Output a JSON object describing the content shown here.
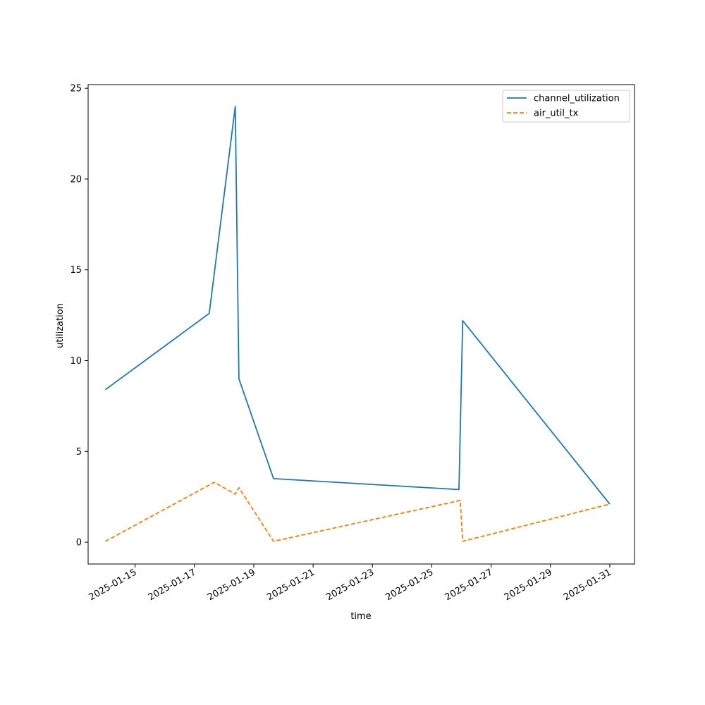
{
  "chart_data": {
    "type": "line",
    "title": "",
    "xlabel": "time",
    "ylabel": "utilization",
    "xlim": [
      "2025-01-13T10:00",
      "2025-01-31T20:00"
    ],
    "ylim": [
      -1.2,
      25.2
    ],
    "x_ticks": [
      "2025-01-15",
      "2025-01-17",
      "2025-01-19",
      "2025-01-21",
      "2025-01-23",
      "2025-01-25",
      "2025-01-27",
      "2025-01-29",
      "2025-01-31"
    ],
    "y_ticks": [
      0,
      5,
      10,
      15,
      20,
      25
    ],
    "grid": false,
    "legend_position": "top-right",
    "series": [
      {
        "name": "channel_utilization",
        "color": "#1f77b4",
        "style": "solid",
        "points": [
          {
            "x": "2025-01-14T00:00",
            "y": 8.4
          },
          {
            "x": "2025-01-17T12:00",
            "y": 12.6
          },
          {
            "x": "2025-01-18T09:00",
            "y": 24.0
          },
          {
            "x": "2025-01-18T12:00",
            "y": 9.0
          },
          {
            "x": "2025-01-19T16:00",
            "y": 3.5
          },
          {
            "x": "2025-01-25T22:00",
            "y": 2.9
          },
          {
            "x": "2025-01-26T01:00",
            "y": 12.2
          },
          {
            "x": "2025-01-31T00:00",
            "y": 2.1
          }
        ]
      },
      {
        "name": "air_util_tx",
        "color": "#ff7f0e",
        "style": "dashed",
        "points": [
          {
            "x": "2025-01-14T00:00",
            "y": 0.05
          },
          {
            "x": "2025-01-17T16:00",
            "y": 3.3
          },
          {
            "x": "2025-01-18T09:00",
            "y": 2.65
          },
          {
            "x": "2025-01-18T12:00",
            "y": 3.0
          },
          {
            "x": "2025-01-19T16:00",
            "y": 0.05
          },
          {
            "x": "2025-01-25T23:00",
            "y": 2.3
          },
          {
            "x": "2025-01-26T01:00",
            "y": 0.05
          },
          {
            "x": "2025-01-31T00:00",
            "y": 2.1
          }
        ]
      }
    ]
  }
}
